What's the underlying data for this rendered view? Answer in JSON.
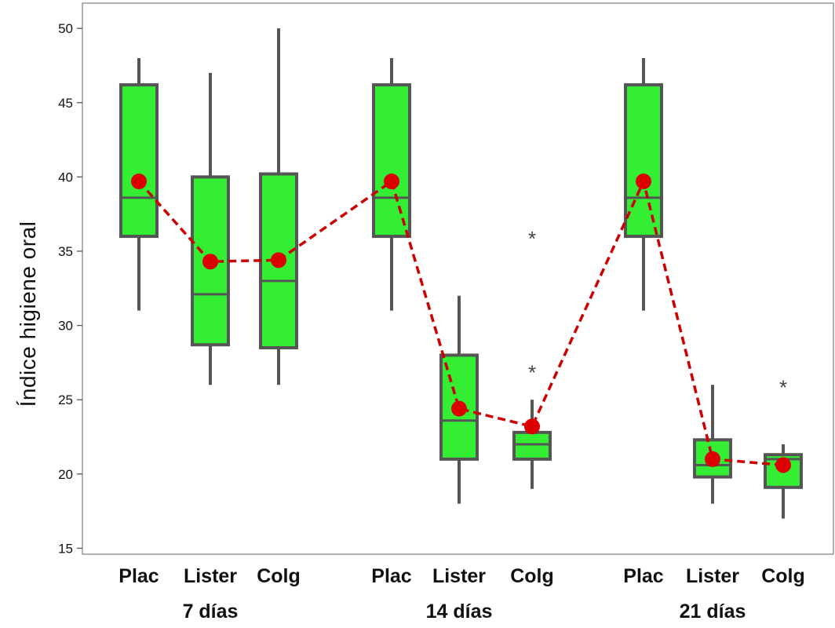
{
  "chart_data": {
    "type": "boxplot",
    "title": "",
    "ylabel": "Índice higiene oral",
    "xlabel": "",
    "ylim": [
      14.6,
      51.7
    ],
    "yticks": [
      15,
      20,
      25,
      30,
      35,
      40,
      45,
      50
    ],
    "grid": false,
    "colors": {
      "box_fill": "#33ee33",
      "box_stroke": "#555555",
      "mean": "#dd0000",
      "mean_line": "#cc0000",
      "outlier": "#444444",
      "frame": "#888888"
    },
    "groups": [
      {
        "label": "7 días",
        "boxes": [
          {
            "category": "Plac",
            "whisker_low": 31,
            "q1": 36,
            "median": 38.6,
            "q3": 46.2,
            "whisker_high": 48,
            "mean": 39.7,
            "outliers": []
          },
          {
            "category": "Lister",
            "whisker_low": 26,
            "q1": 28.7,
            "median": 32.1,
            "q3": 40,
            "whisker_high": 47,
            "mean": 34.3,
            "outliers": []
          },
          {
            "category": "Colg",
            "whisker_low": 26,
            "q1": 28.5,
            "median": 33,
            "q3": 40.2,
            "whisker_high": 50,
            "mean": 34.4,
            "outliers": []
          }
        ]
      },
      {
        "label": "14 días",
        "boxes": [
          {
            "category": "Plac",
            "whisker_low": 31,
            "q1": 36,
            "median": 38.6,
            "q3": 46.2,
            "whisker_high": 48,
            "mean": 39.7,
            "outliers": []
          },
          {
            "category": "Lister",
            "whisker_low": 18,
            "q1": 21,
            "median": 23.6,
            "q3": 28,
            "whisker_high": 32,
            "mean": 24.4,
            "outliers": []
          },
          {
            "category": "Colg",
            "whisker_low": 19,
            "q1": 21,
            "median": 22,
            "q3": 22.8,
            "whisker_high": 25,
            "mean": 23.2,
            "outliers": [
              27,
              36
            ]
          }
        ]
      },
      {
        "label": "21 días",
        "boxes": [
          {
            "category": "Plac",
            "whisker_low": 31,
            "q1": 36,
            "median": 38.6,
            "q3": 46.2,
            "whisker_high": 48,
            "mean": 39.7,
            "outliers": []
          },
          {
            "category": "Lister",
            "whisker_low": 18,
            "q1": 19.8,
            "median": 20.6,
            "q3": 22.3,
            "whisker_high": 26,
            "mean": 21,
            "outliers": []
          },
          {
            "category": "Colg",
            "whisker_low": 17,
            "q1": 19.1,
            "median": 21,
            "q3": 21.3,
            "whisker_high": 22,
            "mean": 20.6,
            "outliers": [
              26
            ]
          }
        ]
      }
    ]
  }
}
